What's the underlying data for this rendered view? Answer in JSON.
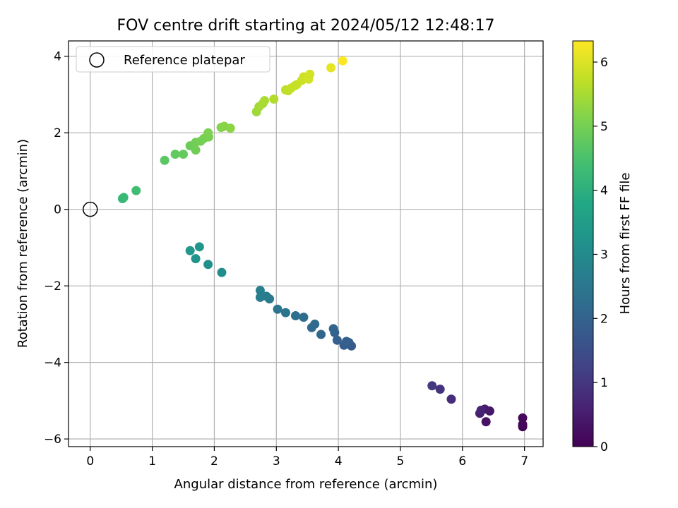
{
  "chart_data": {
    "type": "scatter",
    "title": "FOV centre drift starting at 2024/05/12 12:48:17",
    "xlabel": "Angular distance from reference (arcmin)",
    "ylabel": "Rotation from reference (arcmin)",
    "xlim": [
      -0.35,
      7.3
    ],
    "ylim": [
      -6.2,
      4.4
    ],
    "xticks": [
      0,
      1,
      2,
      3,
      4,
      5,
      6,
      7
    ],
    "yticks": [
      -6,
      -4,
      -2,
      0,
      2,
      4
    ],
    "grid": true,
    "legend": {
      "location": "upper-left",
      "entries": [
        "Reference platepar"
      ]
    },
    "reference_point": {
      "x": 0,
      "y": 0,
      "label": "Reference platepar",
      "marker": "hollow-circle"
    },
    "colorbar": {
      "label": "Hours from first FF file",
      "colormap": "viridis",
      "range": [
        0,
        6.33
      ],
      "ticks": [
        0,
        1,
        2,
        3,
        4,
        5,
        6
      ]
    },
    "points": [
      {
        "x": 6.97,
        "y": -5.68,
        "c": 0.05
      },
      {
        "x": 6.97,
        "y": -5.62,
        "c": 0.1
      },
      {
        "x": 6.97,
        "y": -5.45,
        "c": 0.15
      },
      {
        "x": 6.38,
        "y": -5.55,
        "c": 0.3
      },
      {
        "x": 6.44,
        "y": -5.27,
        "c": 0.4
      },
      {
        "x": 6.36,
        "y": -5.22,
        "c": 0.45
      },
      {
        "x": 6.28,
        "y": -5.33,
        "c": 0.55
      },
      {
        "x": 6.3,
        "y": -5.25,
        "c": 0.6
      },
      {
        "x": 5.82,
        "y": -4.96,
        "c": 0.8
      },
      {
        "x": 5.64,
        "y": -4.7,
        "c": 0.95
      },
      {
        "x": 5.51,
        "y": -4.61,
        "c": 1.05
      },
      {
        "x": 4.21,
        "y": -3.57,
        "c": 1.75
      },
      {
        "x": 4.17,
        "y": -3.48,
        "c": 1.8
      },
      {
        "x": 4.09,
        "y": -3.55,
        "c": 1.85
      },
      {
        "x": 4.13,
        "y": -3.45,
        "c": 1.9
      },
      {
        "x": 3.98,
        "y": -3.42,
        "c": 1.95
      },
      {
        "x": 3.94,
        "y": -3.22,
        "c": 2.0
      },
      {
        "x": 3.92,
        "y": -3.12,
        "c": 2.05
      },
      {
        "x": 3.72,
        "y": -3.27,
        "c": 2.1
      },
      {
        "x": 3.57,
        "y": -3.09,
        "c": 2.15
      },
      {
        "x": 3.62,
        "y": -3.0,
        "c": 2.2
      },
      {
        "x": 3.44,
        "y": -2.82,
        "c": 2.25
      },
      {
        "x": 3.31,
        "y": -2.78,
        "c": 2.3
      },
      {
        "x": 3.15,
        "y": -2.7,
        "c": 2.4
      },
      {
        "x": 3.02,
        "y": -2.61,
        "c": 2.45
      },
      {
        "x": 2.89,
        "y": -2.34,
        "c": 2.55
      },
      {
        "x": 2.84,
        "y": -2.27,
        "c": 2.6
      },
      {
        "x": 2.74,
        "y": -2.3,
        "c": 2.65
      },
      {
        "x": 2.74,
        "y": -2.12,
        "c": 2.7
      },
      {
        "x": 2.12,
        "y": -1.65,
        "c": 3.05
      },
      {
        "x": 1.9,
        "y": -1.44,
        "c": 3.15
      },
      {
        "x": 1.7,
        "y": -1.29,
        "c": 3.25
      },
      {
        "x": 1.76,
        "y": -0.98,
        "c": 3.3
      },
      {
        "x": 1.61,
        "y": -1.08,
        "c": 3.35
      },
      {
        "x": 0.52,
        "y": 0.28,
        "c": 4.2
      },
      {
        "x": 0.54,
        "y": 0.31,
        "c": 4.25
      },
      {
        "x": 0.74,
        "y": 0.49,
        "c": 4.35
      },
      {
        "x": 1.2,
        "y": 1.28,
        "c": 4.7
      },
      {
        "x": 1.37,
        "y": 1.44,
        "c": 4.78
      },
      {
        "x": 1.5,
        "y": 1.44,
        "c": 4.82
      },
      {
        "x": 1.61,
        "y": 1.66,
        "c": 4.9
      },
      {
        "x": 1.7,
        "y": 1.55,
        "c": 4.95
      },
      {
        "x": 1.7,
        "y": 1.75,
        "c": 4.97
      },
      {
        "x": 1.78,
        "y": 1.78,
        "c": 5.0
      },
      {
        "x": 1.83,
        "y": 1.85,
        "c": 5.02
      },
      {
        "x": 1.91,
        "y": 1.89,
        "c": 5.05
      },
      {
        "x": 1.9,
        "y": 2.0,
        "c": 5.08
      },
      {
        "x": 2.11,
        "y": 2.14,
        "c": 5.15
      },
      {
        "x": 2.16,
        "y": 2.17,
        "c": 5.18
      },
      {
        "x": 2.26,
        "y": 2.12,
        "c": 5.22
      },
      {
        "x": 2.68,
        "y": 2.55,
        "c": 5.4
      },
      {
        "x": 2.72,
        "y": 2.68,
        "c": 5.45
      },
      {
        "x": 2.78,
        "y": 2.76,
        "c": 5.5
      },
      {
        "x": 2.81,
        "y": 2.84,
        "c": 5.52
      },
      {
        "x": 2.96,
        "y": 2.88,
        "c": 5.58
      },
      {
        "x": 3.15,
        "y": 3.12,
        "c": 5.7
      },
      {
        "x": 3.19,
        "y": 3.1,
        "c": 5.72
      },
      {
        "x": 3.24,
        "y": 3.17,
        "c": 5.75
      },
      {
        "x": 3.3,
        "y": 3.23,
        "c": 5.78
      },
      {
        "x": 3.33,
        "y": 3.26,
        "c": 5.8
      },
      {
        "x": 3.41,
        "y": 3.37,
        "c": 5.83
      },
      {
        "x": 3.44,
        "y": 3.46,
        "c": 5.86
      },
      {
        "x": 3.5,
        "y": 3.46,
        "c": 5.88
      },
      {
        "x": 3.52,
        "y": 3.4,
        "c": 5.9
      },
      {
        "x": 3.54,
        "y": 3.53,
        "c": 5.92
      },
      {
        "x": 3.88,
        "y": 3.7,
        "c": 6.1
      },
      {
        "x": 4.07,
        "y": 3.88,
        "c": 6.3
      }
    ]
  }
}
